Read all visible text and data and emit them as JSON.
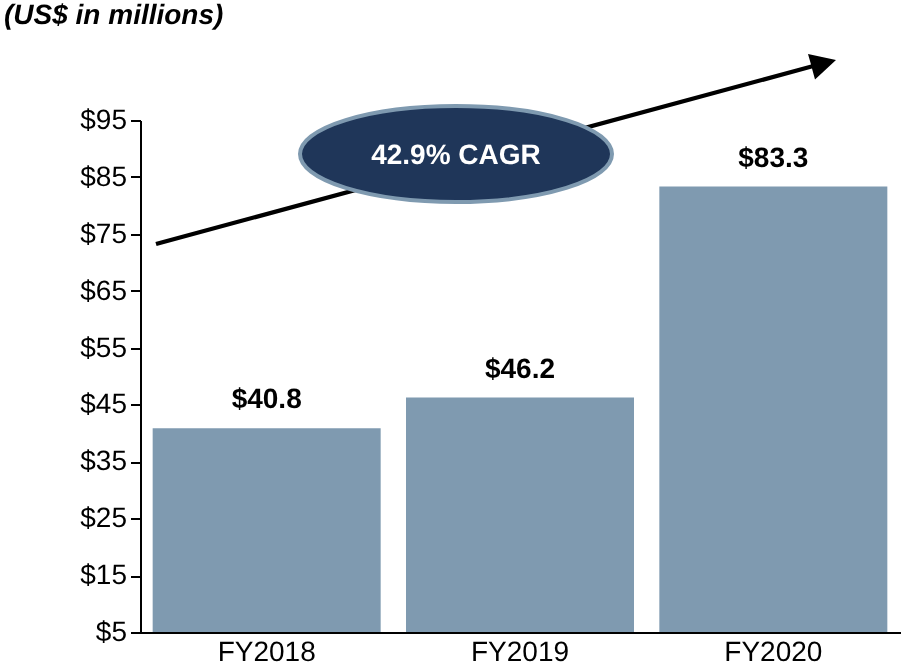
{
  "chart_data": {
    "type": "bar",
    "title": "(US$ in millions)",
    "categories": [
      "FY2018",
      "FY2019",
      "FY2020"
    ],
    "values": [
      40.8,
      46.2,
      83.3
    ],
    "value_labels": [
      "$40.8",
      "$46.2",
      "$83.3"
    ],
    "color": "#7f9ab0",
    "ylim": [
      5,
      95
    ],
    "yticks": [
      {
        "value": 5,
        "label": "$5"
      },
      {
        "value": 15,
        "label": "$15"
      },
      {
        "value": 25,
        "label": "$25"
      },
      {
        "value": 35,
        "label": "$35"
      },
      {
        "value": 45,
        "label": "$45"
      },
      {
        "value": 55,
        "label": "$55"
      },
      {
        "value": 65,
        "label": "$65"
      },
      {
        "value": 75,
        "label": "$75"
      },
      {
        "value": 85,
        "label": "$85"
      },
      {
        "value": 95,
        "label": "$95"
      }
    ],
    "grid": false,
    "annotations": [
      "42.9% CAGR"
    ]
  }
}
